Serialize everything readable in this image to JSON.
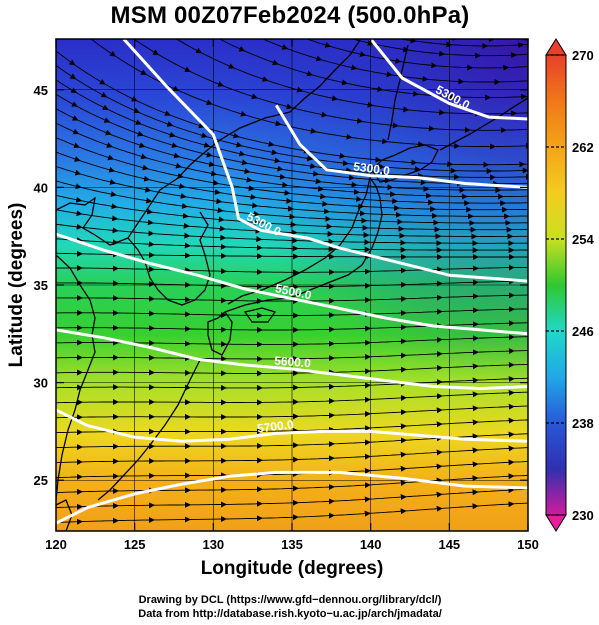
{
  "title": "MSM 00Z07Feb2024 (500.0hPa)",
  "x_axis": {
    "label": "Longitude (degrees)",
    "ticks": [
      "120",
      "125",
      "130",
      "135",
      "140",
      "145",
      "150"
    ],
    "tick_values": [
      120,
      125,
      130,
      135,
      140,
      145,
      150
    ],
    "range": [
      120,
      150
    ]
  },
  "y_axis": {
    "label": "Latitude  (degrees)",
    "ticks": [
      "25",
      "30",
      "35",
      "40",
      "45"
    ],
    "tick_values": [
      25,
      30,
      35,
      40,
      45
    ],
    "range": [
      22.4,
      47.6
    ]
  },
  "colorbar": {
    "ticks": [
      "270",
      "262",
      "254",
      "246",
      "238",
      "230"
    ],
    "tick_values": [
      270,
      262,
      254,
      246,
      238,
      230
    ],
    "range": [
      230,
      270
    ],
    "colors_top_to_bottom": [
      "#e8402c",
      "#f07818",
      "#f4a418",
      "#f4cc20",
      "#c8e020",
      "#30c830",
      "#20d8c8",
      "#20a8e8",
      "#2858d8",
      "#3030b0",
      "#7018a8",
      "#d01c9c"
    ]
  },
  "contours": [
    {
      "label": "5300.0",
      "points": [
        [
          124.3,
          47.6
        ],
        [
          127,
          45.2
        ],
        [
          130,
          42.7
        ],
        [
          131.2,
          40.0
        ],
        [
          131.6,
          38.4
        ],
        [
          133,
          37.8
        ],
        [
          136,
          37.4
        ],
        [
          138,
          36.9
        ],
        [
          141,
          36.3
        ],
        [
          145,
          35.5
        ],
        [
          150,
          35.2
        ]
      ]
    },
    {
      "label": "5300.0",
      "points": [
        [
          140.0,
          47.6
        ],
        [
          142,
          45.6
        ],
        [
          145,
          44.3
        ],
        [
          147.5,
          43.6
        ],
        [
          150,
          43.5
        ]
      ]
    },
    {
      "label": "5300.0",
      "points": [
        [
          134,
          44.2
        ],
        [
          135.5,
          42.2
        ],
        [
          137.2,
          40.9
        ],
        [
          140,
          40.6
        ],
        [
          143,
          40.5
        ],
        [
          146,
          40.2
        ],
        [
          150,
          40.0
        ]
      ]
    },
    {
      "label": "5500.0",
      "points": [
        [
          120,
          37.6
        ],
        [
          123,
          36.8
        ],
        [
          126,
          36.1
        ],
        [
          129,
          35.5
        ],
        [
          132,
          34.8
        ],
        [
          135,
          34.3
        ],
        [
          138,
          33.8
        ],
        [
          141,
          33.3
        ],
        [
          144,
          32.9
        ],
        [
          147,
          32.7
        ],
        [
          150,
          32.5
        ]
      ]
    },
    {
      "label": "5600.0",
      "points": [
        [
          120,
          32.7
        ],
        [
          123,
          32.3
        ],
        [
          126,
          31.8
        ],
        [
          129,
          31.2
        ],
        [
          132,
          30.9
        ],
        [
          135,
          30.7
        ],
        [
          138,
          30.4
        ],
        [
          141,
          30.1
        ],
        [
          144,
          29.8
        ],
        [
          147,
          29.7
        ],
        [
          150,
          29.8
        ]
      ]
    },
    {
      "label": "5700.0",
      "points": [
        [
          120,
          28.6
        ],
        [
          122,
          27.8
        ],
        [
          125,
          27.2
        ],
        [
          128,
          27.0
        ],
        [
          131,
          27.1
        ],
        [
          134,
          27.4
        ],
        [
          137,
          27.5
        ],
        [
          140,
          27.5
        ],
        [
          143,
          27.3
        ],
        [
          146,
          27.1
        ],
        [
          150,
          27.0
        ]
      ]
    },
    {
      "label": "",
      "points": [
        [
          120,
          22.8
        ],
        [
          122,
          23.6
        ],
        [
          125,
          24.3
        ],
        [
          128,
          24.8
        ],
        [
          131,
          25.2
        ],
        [
          134,
          25.4
        ],
        [
          138,
          25.4
        ],
        [
          142,
          25.1
        ],
        [
          146,
          24.7
        ],
        [
          150,
          24.6
        ]
      ]
    }
  ],
  "credits": {
    "line1": "Drawing by DCL (https://www.gfd−dennou.org/library/dcl/)",
    "line2": "Data from http://database.rish.kyoto−u.ac.jp/arch/jmadata/"
  }
}
